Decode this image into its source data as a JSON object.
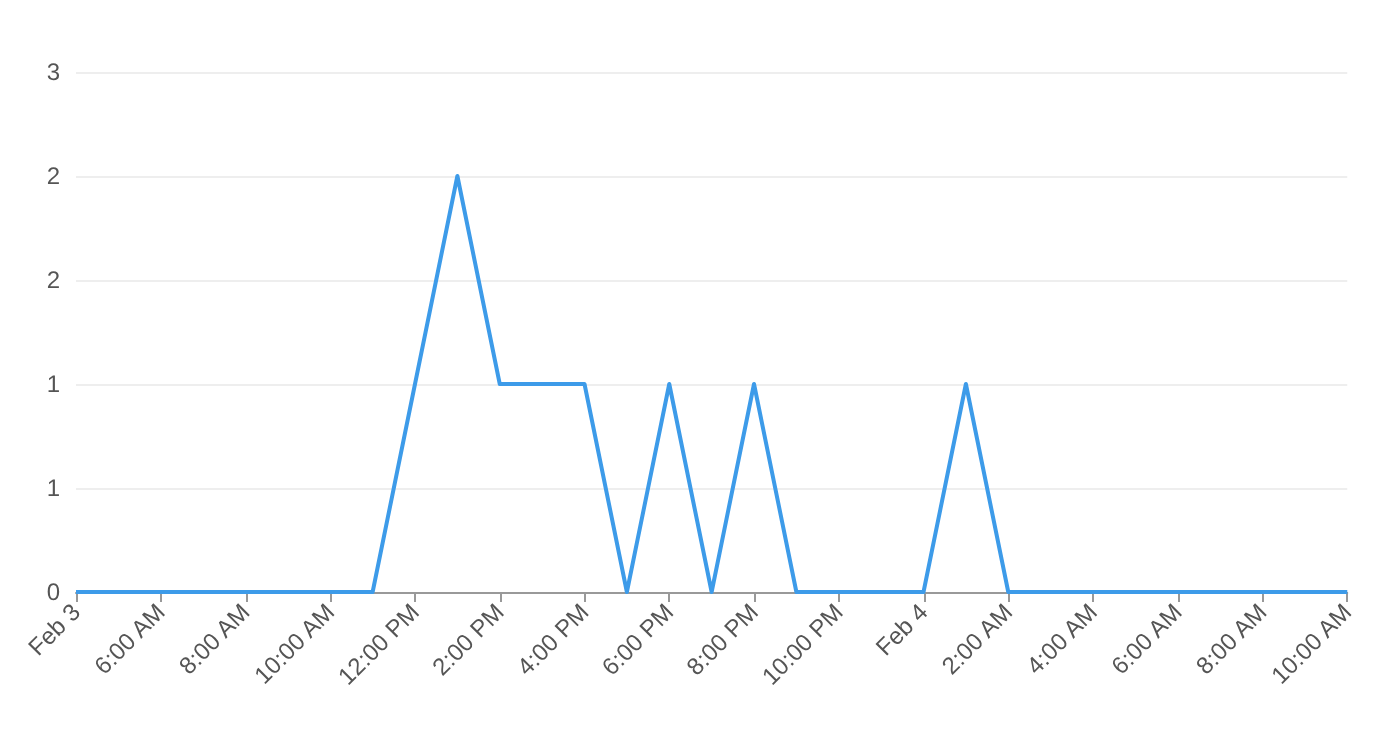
{
  "chart_data": {
    "type": "line",
    "categories": [
      "Feb 3",
      null,
      "6:00 AM",
      null,
      "8:00 AM",
      null,
      "10:00 AM",
      null,
      "12:00 PM",
      null,
      "2:00 PM",
      null,
      "4:00 PM",
      null,
      "6:00 PM",
      null,
      "8:00 PM",
      null,
      "10:00 PM",
      null,
      "Feb 4",
      null,
      "2:00 AM",
      null,
      "4:00 AM",
      null,
      "6:00 AM",
      null,
      "8:00 AM",
      null,
      "10:00 AM"
    ],
    "series": [
      {
        "color": "#3d9be9",
        "values": [
          0,
          0,
          0,
          0,
          0,
          0,
          0,
          0,
          1,
          2,
          1,
          1,
          1,
          0,
          1,
          0,
          1,
          0,
          0,
          0,
          0,
          1,
          0,
          0,
          0,
          0,
          0,
          0,
          0,
          0,
          0
        ]
      }
    ],
    "ylim": [
      0,
      2.5
    ],
    "yticks": [
      0,
      {
        "value": 0.5,
        "label": "1"
      },
      {
        "value": 1,
        "label": "1"
      },
      {
        "value": 1.5,
        "label": "2"
      },
      {
        "value": 2,
        "label": "2"
      },
      {
        "value": 2.5,
        "label": "3"
      }
    ],
    "grid": "y",
    "marker": "none",
    "line_style": "solid"
  }
}
